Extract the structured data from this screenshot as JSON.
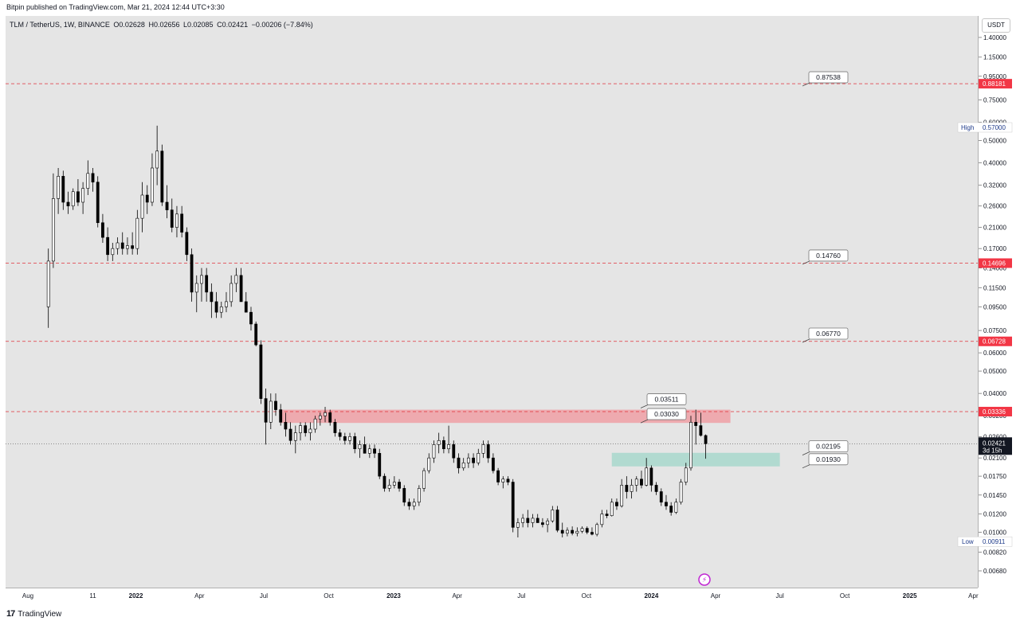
{
  "header": {
    "publisher": "Bitpin published on TradingView.com, Mar 21, 2024 12:44 UTC+3:30"
  },
  "symbol": {
    "pair": "TLM / TetherUS, 1W, BINANCE",
    "open": "O0.02628",
    "high": "H0.02656",
    "low": "L0.02085",
    "close": "C0.02421",
    "change": "−0.00206 (−7.84%)"
  },
  "currency": "USDT",
  "footer": {
    "brand": "TradingView"
  },
  "colors": {
    "up": "#ffffff",
    "down": "#000000",
    "resistance_zone": "#f0a0a6",
    "support_zone": "#a8d8cc",
    "level_line": "#e0303a",
    "price_tag": "#f23645"
  },
  "chart_data": {
    "type": "candlestick",
    "title": "TLM / TetherUS, 1W, BINANCE",
    "y_scale": "log",
    "y_ticks": [
      "1.40000",
      "1.15000",
      "0.95000",
      "0.75000",
      "0.60000",
      "0.50000",
      "0.40000",
      "0.32000",
      "0.26000",
      "0.21000",
      "0.17000",
      "0.14000",
      "0.11500",
      "0.09500",
      "0.07500",
      "0.06000",
      "0.05000",
      "0.04000",
      "0.03200",
      "0.02600",
      "0.02100",
      "0.01750",
      "0.01450",
      "0.01200",
      "0.01000",
      "0.00820",
      "0.00680"
    ],
    "x_ticks": [
      {
        "label": "Aug",
        "date": "2021-08-01",
        "bold": false
      },
      {
        "label": "11",
        "date": "2021-11-01",
        "bold": false
      },
      {
        "label": "2022",
        "date": "2022-01-01",
        "bold": true
      },
      {
        "label": "Apr",
        "date": "2022-04-01",
        "bold": false
      },
      {
        "label": "Jul",
        "date": "2022-07-01",
        "bold": false
      },
      {
        "label": "Oct",
        "date": "2022-10-01",
        "bold": false
      },
      {
        "label": "2023",
        "date": "2023-01-01",
        "bold": true
      },
      {
        "label": "Apr",
        "date": "2023-04-01",
        "bold": false
      },
      {
        "label": "Jul",
        "date": "2023-07-01",
        "bold": false
      },
      {
        "label": "Oct",
        "date": "2023-10-01",
        "bold": false
      },
      {
        "label": "2024",
        "date": "2024-01-01",
        "bold": true
      },
      {
        "label": "Apr",
        "date": "2024-04-01",
        "bold": false
      },
      {
        "label": "Jul",
        "date": "2024-07-01",
        "bold": false
      },
      {
        "label": "Oct",
        "date": "2024-10-01",
        "bold": false
      },
      {
        "label": "2025",
        "date": "2025-01-01",
        "bold": true
      },
      {
        "label": "Apr",
        "date": "2025-04-01",
        "bold": false
      }
    ],
    "levels": [
      {
        "price": 0.88181,
        "tag": "0.88181"
      },
      {
        "price": 0.14696,
        "tag": "0.14696"
      },
      {
        "price": 0.06728,
        "tag": "0.06728"
      },
      {
        "price": 0.03336,
        "tag": "0.03336"
      }
    ],
    "annotations": [
      {
        "text": "0.87538",
        "price": 0.87538
      },
      {
        "text": "0.14760",
        "price": 0.1476
      },
      {
        "text": "0.06770",
        "price": 0.0677
      },
      {
        "text": "0.03511",
        "price": 0.03511
      },
      {
        "text": "0.03030",
        "price": 0.0303
      },
      {
        "text": "0.02195",
        "price": 0.02195
      },
      {
        "text": "0.01930",
        "price": 0.0193
      }
    ],
    "zones": [
      {
        "name": "resistance",
        "from": 0.0298,
        "to": 0.034,
        "start": "2022-07-25",
        "end": "2024-04-22"
      },
      {
        "name": "support",
        "from": 0.0193,
        "to": 0.0221,
        "start": "2023-11-06",
        "end": "2024-07-01"
      }
    ],
    "high_marker": {
      "label": "High",
      "value": "0.57000"
    },
    "low_marker": {
      "label": "Low",
      "value": "0.00911"
    },
    "last_price": {
      "value": "0.02421",
      "countdown": "3d 15h"
    },
    "candles": [
      [
        0.095,
        0.17,
        0.077,
        0.15
      ],
      [
        0.15,
        0.36,
        0.14,
        0.28
      ],
      [
        0.28,
        0.38,
        0.24,
        0.35
      ],
      [
        0.35,
        0.37,
        0.25,
        0.27
      ],
      [
        0.27,
        0.3,
        0.24,
        0.26
      ],
      [
        0.26,
        0.31,
        0.25,
        0.3
      ],
      [
        0.3,
        0.34,
        0.26,
        0.27
      ],
      [
        0.27,
        0.33,
        0.24,
        0.31
      ],
      [
        0.31,
        0.41,
        0.29,
        0.36
      ],
      [
        0.36,
        0.38,
        0.3,
        0.33
      ],
      [
        0.33,
        0.35,
        0.21,
        0.22
      ],
      [
        0.22,
        0.24,
        0.18,
        0.19
      ],
      [
        0.19,
        0.21,
        0.15,
        0.16
      ],
      [
        0.16,
        0.18,
        0.15,
        0.17
      ],
      [
        0.17,
        0.19,
        0.16,
        0.18
      ],
      [
        0.18,
        0.2,
        0.16,
        0.17
      ],
      [
        0.17,
        0.19,
        0.16,
        0.175
      ],
      [
        0.175,
        0.2,
        0.16,
        0.17
      ],
      [
        0.17,
        0.25,
        0.16,
        0.23
      ],
      [
        0.23,
        0.33,
        0.2,
        0.29
      ],
      [
        0.29,
        0.32,
        0.24,
        0.27
      ],
      [
        0.27,
        0.44,
        0.26,
        0.38
      ],
      [
        0.38,
        0.58,
        0.32,
        0.45
      ],
      [
        0.45,
        0.48,
        0.26,
        0.27
      ],
      [
        0.27,
        0.32,
        0.23,
        0.25
      ],
      [
        0.25,
        0.28,
        0.2,
        0.21
      ],
      [
        0.21,
        0.26,
        0.19,
        0.24
      ],
      [
        0.24,
        0.26,
        0.19,
        0.2
      ],
      [
        0.2,
        0.21,
        0.15,
        0.16
      ],
      [
        0.16,
        0.17,
        0.1,
        0.11
      ],
      [
        0.11,
        0.13,
        0.09,
        0.12
      ],
      [
        0.12,
        0.14,
        0.1,
        0.13
      ],
      [
        0.13,
        0.14,
        0.1,
        0.11
      ],
      [
        0.11,
        0.12,
        0.085,
        0.1
      ],
      [
        0.1,
        0.11,
        0.085,
        0.09
      ],
      [
        0.09,
        0.1,
        0.085,
        0.095
      ],
      [
        0.095,
        0.11,
        0.09,
        0.1
      ],
      [
        0.1,
        0.13,
        0.095,
        0.12
      ],
      [
        0.12,
        0.14,
        0.11,
        0.13
      ],
      [
        0.13,
        0.14,
        0.1,
        0.1
      ],
      [
        0.1,
        0.11,
        0.09,
        0.09
      ],
      [
        0.09,
        0.095,
        0.075,
        0.08
      ],
      [
        0.08,
        0.082,
        0.064,
        0.065
      ],
      [
        0.065,
        0.068,
        0.036,
        0.038
      ],
      [
        0.038,
        0.042,
        0.024,
        0.03
      ],
      [
        0.03,
        0.04,
        0.028,
        0.037
      ],
      [
        0.037,
        0.04,
        0.032,
        0.034
      ],
      [
        0.034,
        0.036,
        0.029,
        0.03
      ],
      [
        0.03,
        0.033,
        0.026,
        0.028
      ],
      [
        0.028,
        0.03,
        0.024,
        0.025
      ],
      [
        0.025,
        0.029,
        0.022,
        0.027
      ],
      [
        0.027,
        0.03,
        0.025,
        0.029
      ],
      [
        0.029,
        0.03,
        0.026,
        0.027
      ],
      [
        0.027,
        0.03,
        0.025,
        0.028
      ],
      [
        0.028,
        0.032,
        0.027,
        0.031
      ],
      [
        0.031,
        0.033,
        0.029,
        0.032
      ],
      [
        0.032,
        0.035,
        0.03,
        0.033
      ],
      [
        0.033,
        0.034,
        0.029,
        0.03
      ],
      [
        0.03,
        0.031,
        0.026,
        0.027
      ],
      [
        0.027,
        0.028,
        0.025,
        0.026
      ],
      [
        0.026,
        0.027,
        0.024,
        0.025
      ],
      [
        0.025,
        0.027,
        0.024,
        0.026
      ],
      [
        0.026,
        0.027,
        0.022,
        0.023
      ],
      [
        0.023,
        0.025,
        0.021,
        0.024
      ],
      [
        0.024,
        0.026,
        0.022,
        0.022
      ],
      [
        0.022,
        0.024,
        0.021,
        0.023
      ],
      [
        0.023,
        0.024,
        0.021,
        0.022
      ],
      [
        0.022,
        0.023,
        0.017,
        0.0175
      ],
      [
        0.0175,
        0.018,
        0.015,
        0.0155
      ],
      [
        0.0155,
        0.017,
        0.015,
        0.016
      ],
      [
        0.016,
        0.0175,
        0.0155,
        0.0165
      ],
      [
        0.0165,
        0.017,
        0.015,
        0.0155
      ],
      [
        0.0155,
        0.016,
        0.013,
        0.0135
      ],
      [
        0.0135,
        0.014,
        0.0125,
        0.013
      ],
      [
        0.013,
        0.014,
        0.0125,
        0.0135
      ],
      [
        0.0135,
        0.016,
        0.013,
        0.0155
      ],
      [
        0.0155,
        0.019,
        0.015,
        0.0185
      ],
      [
        0.0185,
        0.022,
        0.018,
        0.021
      ],
      [
        0.021,
        0.025,
        0.02,
        0.024
      ],
      [
        0.024,
        0.027,
        0.022,
        0.025
      ],
      [
        0.025,
        0.026,
        0.022,
        0.023
      ],
      [
        0.023,
        0.029,
        0.022,
        0.024
      ],
      [
        0.024,
        0.025,
        0.02,
        0.021
      ],
      [
        0.021,
        0.022,
        0.018,
        0.019
      ],
      [
        0.019,
        0.021,
        0.0185,
        0.02
      ],
      [
        0.02,
        0.022,
        0.019,
        0.021
      ],
      [
        0.021,
        0.022,
        0.019,
        0.02
      ],
      [
        0.02,
        0.023,
        0.0195,
        0.022
      ],
      [
        0.022,
        0.025,
        0.021,
        0.024
      ],
      [
        0.024,
        0.025,
        0.02,
        0.021
      ],
      [
        0.021,
        0.022,
        0.018,
        0.0185
      ],
      [
        0.0185,
        0.019,
        0.016,
        0.0165
      ],
      [
        0.0165,
        0.0175,
        0.0155,
        0.017
      ],
      [
        0.017,
        0.0175,
        0.016,
        0.0165
      ],
      [
        0.0165,
        0.017,
        0.01,
        0.0105
      ],
      [
        0.0105,
        0.0115,
        0.0095,
        0.011
      ],
      [
        0.011,
        0.012,
        0.0105,
        0.0115
      ],
      [
        0.0115,
        0.0125,
        0.0105,
        0.011
      ],
      [
        0.011,
        0.012,
        0.0105,
        0.0115
      ],
      [
        0.0115,
        0.012,
        0.011,
        0.011
      ],
      [
        0.011,
        0.0115,
        0.0105,
        0.0108
      ],
      [
        0.0108,
        0.0115,
        0.01,
        0.0112
      ],
      [
        0.0112,
        0.013,
        0.011,
        0.0125
      ],
      [
        0.0125,
        0.013,
        0.01,
        0.0102
      ],
      [
        0.0102,
        0.011,
        0.0095,
        0.0099
      ],
      [
        0.0099,
        0.0105,
        0.0096,
        0.0102
      ],
      [
        0.0102,
        0.0106,
        0.0097,
        0.0099
      ],
      [
        0.0099,
        0.0105,
        0.0096,
        0.0101
      ],
      [
        0.0101,
        0.0106,
        0.0099,
        0.0104
      ],
      [
        0.0104,
        0.0106,
        0.0098,
        0.01
      ],
      [
        0.01,
        0.0105,
        0.0097,
        0.0098
      ],
      [
        0.0098,
        0.011,
        0.0096,
        0.0108
      ],
      [
        0.0108,
        0.0125,
        0.0105,
        0.012
      ],
      [
        0.012,
        0.0125,
        0.0115,
        0.0118
      ],
      [
        0.0118,
        0.014,
        0.0117,
        0.0135
      ],
      [
        0.0135,
        0.014,
        0.0125,
        0.013
      ],
      [
        0.013,
        0.017,
        0.0128,
        0.016
      ],
      [
        0.016,
        0.0175,
        0.014,
        0.015
      ],
      [
        0.015,
        0.017,
        0.014,
        0.016
      ],
      [
        0.016,
        0.0175,
        0.015,
        0.017
      ],
      [
        0.017,
        0.0185,
        0.0155,
        0.016
      ],
      [
        0.016,
        0.021,
        0.0158,
        0.019
      ],
      [
        0.019,
        0.0195,
        0.015,
        0.016
      ],
      [
        0.016,
        0.0165,
        0.0145,
        0.015
      ],
      [
        0.015,
        0.0155,
        0.013,
        0.0135
      ],
      [
        0.0135,
        0.0145,
        0.0125,
        0.013
      ],
      [
        0.013,
        0.0135,
        0.0118,
        0.0122
      ],
      [
        0.0122,
        0.014,
        0.012,
        0.0135
      ],
      [
        0.0135,
        0.017,
        0.0132,
        0.0165
      ],
      [
        0.0165,
        0.02,
        0.016,
        0.019
      ],
      [
        0.019,
        0.032,
        0.0185,
        0.03
      ],
      [
        0.03,
        0.034,
        0.024,
        0.029
      ],
      [
        0.029,
        0.033,
        0.026,
        0.0263
      ],
      [
        0.02628,
        0.02656,
        0.02085,
        0.02421
      ]
    ]
  }
}
